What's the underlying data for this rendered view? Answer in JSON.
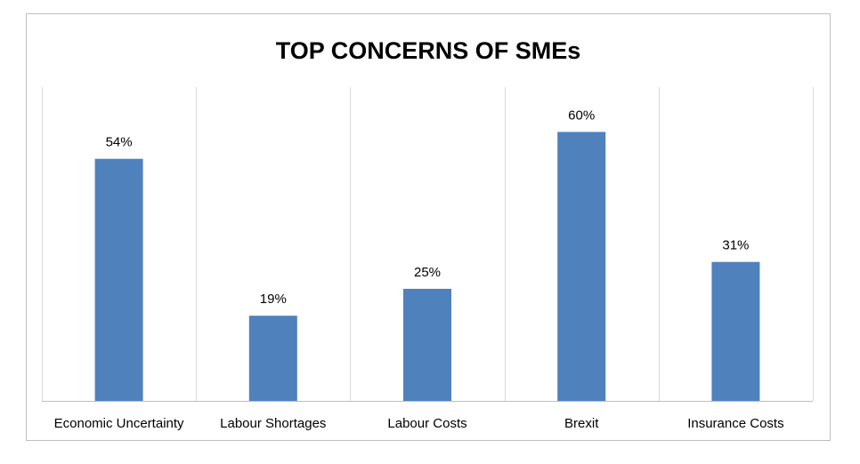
{
  "chart_data": {
    "type": "bar",
    "title": "TOP CONCERNS OF SMEs",
    "xlabel": "",
    "ylabel": "",
    "categories": [
      "Economic Uncertainty",
      "Labour Shortages",
      "Labour Costs",
      "Brexit",
      "Insurance Costs"
    ],
    "values": [
      54,
      19,
      25,
      60,
      31
    ],
    "data_labels": [
      "54%",
      "19%",
      "25%",
      "60%",
      "31%"
    ],
    "unit": "%",
    "ylim": [
      0,
      70
    ],
    "grid": "vertical separators between categories",
    "legend": "none",
    "colors": {
      "bar": "#4f81bd",
      "gridline": "#d9d9d9",
      "axis": "#bfbfbf",
      "border": "#bfbfbf",
      "text": "#000000"
    }
  }
}
